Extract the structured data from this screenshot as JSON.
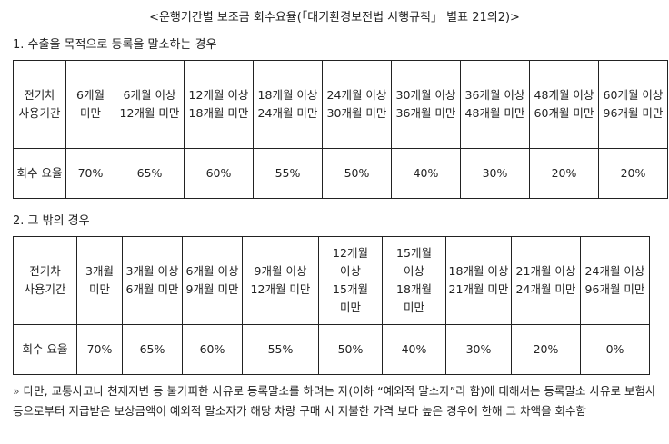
{
  "title": "<운행기간별 보조금 회수요율(「대기환경보전법 시행규칙」 별표 21의2)>",
  "section1": {
    "heading": "1. 수출을 목적으로 등록을 말소하는 경우",
    "header_label": "전기차 사용기간",
    "periods": [
      "6개월 미만",
      "6개월 이상 12개월 미만",
      "12개월 이상 18개월 미만",
      "18개월 이상 24개월 미만",
      "24개월 이상 30개월 미만",
      "30개월 이상 36개월 미만",
      "36개월 이상 48개월 미만",
      "48개월 이상 60개월 미만",
      "60개월 이상 96개월 미만"
    ],
    "rate_label": "회수 요율",
    "rates": [
      "70%",
      "65%",
      "60%",
      "55%",
      "50%",
      "40%",
      "30%",
      "20%",
      "20%"
    ]
  },
  "section2": {
    "heading": "2. 그 밖의 경우",
    "header_label": "전기차 사용기간",
    "periods": [
      "3개월 미만",
      "3개월 이상 6개월 미만",
      "6개월 이상 9개월 미만",
      "9개월 이상 12개월 미만",
      "12개월 이상 15개월 미만",
      "15개월 이상 18개월 미만",
      "18개월 이상 21개월 미만",
      "21개월 이상 24개월 미만",
      "24개월 이상 96개월 미만"
    ],
    "rate_label": "회수 요율",
    "rates": [
      "70%",
      "65%",
      "60%",
      "55%",
      "50%",
      "40%",
      "30%",
      "20%",
      "0%"
    ]
  },
  "note": {
    "marker": "»",
    "text": "다만, 교통사고나 천재지변 등 불가피한 사유로 등록말소를 하려는 자(이하 “예외적 말소자”라 함)에 대해서는 등록말소 사유로 보험사 등으로부터 지급받은 보상금액이 예외적 말소자가 해당 차량 구매 시 지불한 가격 보다 높은 경우에 한해 그 차액을 회수함"
  }
}
